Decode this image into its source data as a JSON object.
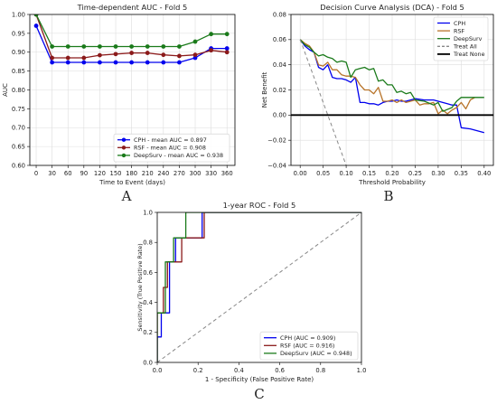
{
  "panel_labels": [
    "A",
    "B",
    "C"
  ],
  "chart_data": [
    {
      "id": "A",
      "type": "line",
      "title": "Time-dependent AUC - Fold 5",
      "xlabel": "Time to Event (days)",
      "ylabel": "AUC",
      "x": [
        0,
        30,
        60,
        90,
        120,
        150,
        180,
        210,
        240,
        270,
        300,
        330,
        360
      ],
      "xticks": [
        0,
        30,
        60,
        90,
        120,
        150,
        180,
        210,
        240,
        270,
        300,
        330,
        360
      ],
      "xlim": [
        -12,
        375
      ],
      "ylim": [
        0.6,
        1.0
      ],
      "yticks": [
        0.6,
        0.65,
        0.7,
        0.75,
        0.8,
        0.85,
        0.9,
        0.95,
        1.0
      ],
      "ytick_labels": [
        "0.60",
        "0.65",
        "0.70",
        "0.75",
        "0.80",
        "0.85",
        "0.90",
        "0.95",
        "1.00"
      ],
      "grid": true,
      "legend_position": "lower-right",
      "series": [
        {
          "name": "CPH - mean AUC = 0.897",
          "color": "#0000ee",
          "values": [
            0.97,
            0.873,
            0.873,
            0.873,
            0.873,
            0.873,
            0.873,
            0.873,
            0.873,
            0.873,
            0.885,
            0.91,
            0.91
          ]
        },
        {
          "name": "RSF - mean AUC = 0.908",
          "color": "#8b1a1a",
          "values": [
            1.0,
            0.885,
            0.885,
            0.885,
            0.892,
            0.895,
            0.898,
            0.898,
            0.893,
            0.89,
            0.893,
            0.905,
            0.9
          ]
        },
        {
          "name": "DeepSurv - mean AUC = 0.938",
          "color": "#1a7a1a",
          "values": [
            1.0,
            0.915,
            0.915,
            0.915,
            0.915,
            0.915,
            0.915,
            0.915,
            0.915,
            0.915,
            0.928,
            0.948,
            0.948
          ]
        }
      ]
    },
    {
      "id": "B",
      "type": "line",
      "title": "Decision Curve Analysis (DCA) - Fold 5",
      "xlabel": "Threshold Probability",
      "ylabel": "Net Benefit",
      "xlim": [
        -0.02,
        0.42
      ],
      "ylim": [
        -0.04,
        0.08
      ],
      "xticks": [
        0.0,
        0.05,
        0.1,
        0.15,
        0.2,
        0.25,
        0.3,
        0.35,
        0.4
      ],
      "xtick_labels": [
        "0.00",
        "0.05",
        "0.10",
        "0.15",
        "0.20",
        "0.25",
        "0.30",
        "0.35",
        "0.40"
      ],
      "yticks": [
        -0.04,
        -0.02,
        0.0,
        0.02,
        0.04,
        0.06,
        0.08
      ],
      "ytick_labels": [
        "−0.04",
        "−0.02",
        "0.00",
        "0.02",
        "0.04",
        "0.06",
        "0.08"
      ],
      "grid": true,
      "legend_position": "top-right",
      "series": [
        {
          "name": "CPH",
          "color": "#0000ee",
          "style": "solid",
          "points": [
            [
              0,
              0.06
            ],
            [
              0.01,
              0.055
            ],
            [
              0.02,
              0.052
            ],
            [
              0.03,
              0.05
            ],
            [
              0.04,
              0.038
            ],
            [
              0.05,
              0.036
            ],
            [
              0.06,
              0.04
            ],
            [
              0.07,
              0.03
            ],
            [
              0.08,
              0.029
            ],
            [
              0.09,
              0.029
            ],
            [
              0.1,
              0.028
            ],
            [
              0.11,
              0.026
            ],
            [
              0.12,
              0.03
            ],
            [
              0.13,
              0.01
            ],
            [
              0.14,
              0.01
            ],
            [
              0.15,
              0.009
            ],
            [
              0.16,
              0.009
            ],
            [
              0.17,
              0.008
            ],
            [
              0.18,
              0.01
            ],
            [
              0.19,
              0.011
            ],
            [
              0.2,
              0.011
            ],
            [
              0.21,
              0.012
            ],
            [
              0.22,
              0.011
            ],
            [
              0.23,
              0.011
            ],
            [
              0.24,
              0.012
            ],
            [
              0.25,
              0.013
            ],
            [
              0.27,
              0.012
            ],
            [
              0.29,
              0.012
            ],
            [
              0.31,
              0.01
            ],
            [
              0.32,
              0.009
            ],
            [
              0.33,
              0.008
            ],
            [
              0.34,
              0.008
            ],
            [
              0.35,
              -0.01
            ],
            [
              0.37,
              -0.011
            ],
            [
              0.4,
              -0.014
            ]
          ]
        },
        {
          "name": "RSF",
          "color": "#b8742a",
          "style": "solid",
          "points": [
            [
              0,
              0.06
            ],
            [
              0.01,
              0.057
            ],
            [
              0.02,
              0.055
            ],
            [
              0.03,
              0.05
            ],
            [
              0.04,
              0.04
            ],
            [
              0.05,
              0.039
            ],
            [
              0.06,
              0.042
            ],
            [
              0.07,
              0.036
            ],
            [
              0.08,
              0.036
            ],
            [
              0.09,
              0.032
            ],
            [
              0.1,
              0.031
            ],
            [
              0.11,
              0.031
            ],
            [
              0.12,
              0.03
            ],
            [
              0.13,
              0.024
            ],
            [
              0.14,
              0.02
            ],
            [
              0.15,
              0.02
            ],
            [
              0.16,
              0.017
            ],
            [
              0.17,
              0.022
            ],
            [
              0.18,
              0.011
            ],
            [
              0.19,
              0.011
            ],
            [
              0.2,
              0.012
            ],
            [
              0.21,
              0.01
            ],
            [
              0.22,
              0.012
            ],
            [
              0.23,
              0.01
            ],
            [
              0.24,
              0.011
            ],
            [
              0.25,
              0.012
            ],
            [
              0.26,
              0.008
            ],
            [
              0.27,
              0.009
            ],
            [
              0.28,
              0.009
            ],
            [
              0.29,
              0.01
            ],
            [
              0.3,
              0.001
            ],
            [
              0.31,
              0.004
            ],
            [
              0.32,
              0.001
            ],
            [
              0.33,
              0.004
            ],
            [
              0.34,
              0.006
            ],
            [
              0.35,
              0.01
            ],
            [
              0.36,
              0.005
            ],
            [
              0.37,
              0.012
            ],
            [
              0.38,
              0.014
            ]
          ]
        },
        {
          "name": "DeepSurv",
          "color": "#1a7a1a",
          "style": "solid",
          "points": [
            [
              0,
              0.06
            ],
            [
              0.01,
              0.056
            ],
            [
              0.02,
              0.054
            ],
            [
              0.03,
              0.05
            ],
            [
              0.04,
              0.047
            ],
            [
              0.05,
              0.048
            ],
            [
              0.06,
              0.046
            ],
            [
              0.07,
              0.045
            ],
            [
              0.08,
              0.042
            ],
            [
              0.09,
              0.043
            ],
            [
              0.1,
              0.042
            ],
            [
              0.11,
              0.03
            ],
            [
              0.12,
              0.036
            ],
            [
              0.13,
              0.037
            ],
            [
              0.14,
              0.038
            ],
            [
              0.15,
              0.036
            ],
            [
              0.16,
              0.037
            ],
            [
              0.17,
              0.027
            ],
            [
              0.18,
              0.028
            ],
            [
              0.19,
              0.024
            ],
            [
              0.2,
              0.024
            ],
            [
              0.21,
              0.018
            ],
            [
              0.22,
              0.019
            ],
            [
              0.23,
              0.017
            ],
            [
              0.24,
              0.018
            ],
            [
              0.25,
              0.012
            ],
            [
              0.27,
              0.011
            ],
            [
              0.29,
              0.008
            ],
            [
              0.3,
              0.01
            ],
            [
              0.31,
              0.003
            ],
            [
              0.33,
              0.006
            ],
            [
              0.34,
              0.011
            ],
            [
              0.35,
              0.014
            ],
            [
              0.4,
              0.014
            ]
          ]
        },
        {
          "name": "Treat All",
          "color": "#888888",
          "style": "dashed",
          "points": [
            [
              0,
              0.06
            ],
            [
              0.1,
              -0.04
            ]
          ]
        },
        {
          "name": "Treat None",
          "color": "#000000",
          "style": "solid-thick",
          "points": [
            [
              -0.02,
              0.0
            ],
            [
              0.42,
              0.0
            ]
          ]
        }
      ]
    },
    {
      "id": "C",
      "type": "line",
      "title": "1-year ROC - Fold 5",
      "xlabel": "1 - Specificity (False Positive Rate)",
      "ylabel": "Sensitivity (True Positive Rate)",
      "xlim": [
        0,
        1
      ],
      "ylim": [
        0,
        1
      ],
      "xticks": [
        0,
        0.2,
        0.4,
        0.6,
        0.8,
        1.0
      ],
      "xtick_labels": [
        "0.0",
        "0.2",
        "0.4",
        "0.6",
        "0.8",
        "1.0"
      ],
      "yticks": [
        0,
        0.2,
        0.4,
        0.6,
        0.8,
        1.0
      ],
      "ytick_labels": [
        "0.0",
        "0.2",
        "0.4",
        "0.6",
        "0.8",
        "1.0"
      ],
      "grid": false,
      "legend_position": "lower-right",
      "series": [
        {
          "name": "CPH (AUC = 0.909)",
          "color": "#0000ee",
          "style": "solid",
          "points": [
            [
              0,
              0
            ],
            [
              0,
              0.17
            ],
            [
              0.02,
              0.17
            ],
            [
              0.02,
              0.33
            ],
            [
              0.06,
              0.33
            ],
            [
              0.06,
              0.67
            ],
            [
              0.09,
              0.67
            ],
            [
              0.09,
              0.83
            ],
            [
              0.22,
              0.83
            ],
            [
              0.22,
              1
            ],
            [
              1,
              1
            ]
          ]
        },
        {
          "name": "RSF (AUC = 0.916)",
          "color": "#8b1a1a",
          "style": "solid",
          "points": [
            [
              0,
              0
            ],
            [
              0,
              0.33
            ],
            [
              0.03,
              0.33
            ],
            [
              0.03,
              0.5
            ],
            [
              0.05,
              0.5
            ],
            [
              0.05,
              0.67
            ],
            [
              0.12,
              0.67
            ],
            [
              0.12,
              0.83
            ],
            [
              0.23,
              0.83
            ],
            [
              0.23,
              1
            ],
            [
              1,
              1
            ]
          ]
        },
        {
          "name": "DeepSurv (AUC = 0.948)",
          "color": "#1a7a1a",
          "style": "solid",
          "points": [
            [
              0,
              0
            ],
            [
              0,
              0.33
            ],
            [
              0.04,
              0.33
            ],
            [
              0.04,
              0.67
            ],
            [
              0.08,
              0.67
            ],
            [
              0.08,
              0.83
            ],
            [
              0.14,
              0.83
            ],
            [
              0.14,
              1
            ],
            [
              1,
              1
            ]
          ]
        },
        {
          "name": "",
          "color": "#888888",
          "style": "dashed",
          "points": [
            [
              0,
              0
            ],
            [
              1,
              1
            ]
          ]
        }
      ]
    }
  ]
}
